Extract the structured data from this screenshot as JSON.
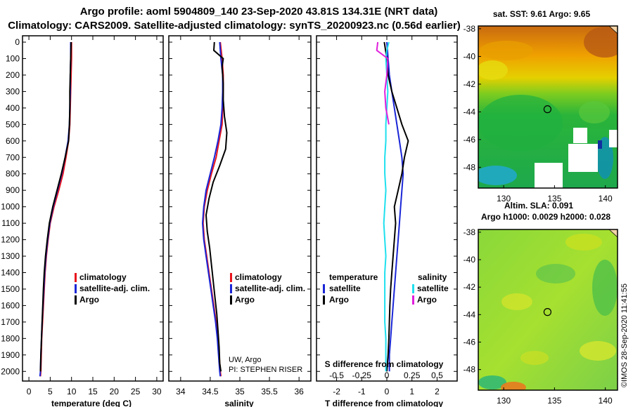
{
  "header": {
    "line1": "Argo profile: aoml 5904809_140 23-Sep-2020 43.81S 134.31E (NRT data)",
    "line2": "Climatology: CARS2009. Satellite-adjusted climatology: synTS_20200923.nc (0.56d earlier)"
  },
  "colors": {
    "climatology": "#e8141c",
    "satellite_adj": "#1a26d6",
    "argo": "#000000",
    "salinity_sat": "#1fe0ee",
    "salinity_argo": "#e01fdc"
  },
  "depth_axis": {
    "ticks": [
      "0",
      "100",
      "200",
      "300",
      "400",
      "500",
      "600",
      "700",
      "800",
      "900",
      "1000",
      "1100",
      "1200",
      "1300",
      "1400",
      "1500",
      "1600",
      "1700",
      "1800",
      "1900",
      "2000"
    ]
  },
  "chart_data": [
    {
      "type": "line",
      "name": "temperature-profile",
      "xlabel": "temperature (deg C)",
      "ylabel": "",
      "xlim": [
        -1.5,
        31.5
      ],
      "ylim": [
        2050,
        -30
      ],
      "x_ticks": [
        "0",
        "5",
        "10",
        "15",
        "20",
        "25",
        "30"
      ],
      "x_tick_values": [
        0,
        5,
        10,
        15,
        20,
        25,
        30
      ],
      "legend": [
        "climatology",
        "satellite-adj. clim.",
        "Argo"
      ],
      "series": [
        {
          "name": "climatology",
          "color_key": "climatology",
          "points": [
            [
              10.0,
              0
            ],
            [
              10.0,
              100
            ],
            [
              9.9,
              200
            ],
            [
              9.8,
              300
            ],
            [
              9.7,
              400
            ],
            [
              9.6,
              500
            ],
            [
              9.3,
              600
            ],
            [
              8.7,
              700
            ],
            [
              8.0,
              800
            ],
            [
              7.0,
              900
            ],
            [
              5.9,
              1000
            ],
            [
              5.0,
              1100
            ],
            [
              4.5,
              1200
            ],
            [
              4.1,
              1300
            ],
            [
              3.8,
              1400
            ],
            [
              3.6,
              1500
            ],
            [
              3.4,
              1600
            ],
            [
              3.2,
              1700
            ],
            [
              3.0,
              1800
            ],
            [
              2.9,
              1900
            ],
            [
              2.8,
              2000
            ],
            [
              2.7,
              2030
            ]
          ]
        },
        {
          "name": "satellite-adj. clim.",
          "color_key": "satellite_adj",
          "points": [
            [
              9.8,
              0
            ],
            [
              9.8,
              100
            ],
            [
              9.7,
              200
            ],
            [
              9.7,
              300
            ],
            [
              9.6,
              400
            ],
            [
              9.5,
              500
            ],
            [
              9.2,
              600
            ],
            [
              8.5,
              700
            ],
            [
              7.7,
              800
            ],
            [
              6.7,
              900
            ],
            [
              5.7,
              1000
            ],
            [
              4.9,
              1100
            ],
            [
              4.4,
              1200
            ],
            [
              4.0,
              1300
            ],
            [
              3.7,
              1400
            ],
            [
              3.5,
              1500
            ],
            [
              3.3,
              1600
            ],
            [
              3.1,
              1700
            ],
            [
              2.95,
              1800
            ],
            [
              2.8,
              1900
            ],
            [
              2.7,
              2000
            ],
            [
              2.6,
              2030
            ]
          ]
        },
        {
          "name": "Argo",
          "color_key": "argo",
          "points": [
            [
              9.9,
              0
            ],
            [
              9.8,
              100
            ],
            [
              9.7,
              200
            ],
            [
              9.6,
              300
            ],
            [
              9.6,
              400
            ],
            [
              9.5,
              500
            ],
            [
              9.3,
              600
            ],
            [
              8.5,
              700
            ],
            [
              7.6,
              800
            ],
            [
              6.6,
              900
            ],
            [
              5.6,
              1000
            ],
            [
              4.8,
              1100
            ],
            [
              4.3,
              1200
            ],
            [
              3.9,
              1300
            ],
            [
              3.6,
              1400
            ],
            [
              3.4,
              1500
            ],
            [
              3.25,
              1600
            ],
            [
              3.1,
              1700
            ],
            [
              2.95,
              1800
            ],
            [
              2.8,
              1900
            ],
            [
              2.7,
              2000
            ]
          ]
        }
      ]
    },
    {
      "type": "line",
      "name": "salinity-profile",
      "xlabel": "salinity",
      "ylabel": "",
      "xlim": [
        33.8,
        36.2
      ],
      "ylim": [
        2050,
        -30
      ],
      "x_ticks": [
        "34",
        "34.5",
        "35",
        "35.5",
        "36"
      ],
      "x_tick_values": [
        34,
        34.5,
        35,
        35.5,
        36
      ],
      "legend": [
        "climatology",
        "satellite-adj. clim.",
        "Argo"
      ],
      "annotation": [
        "UW, Argo",
        "PI: STEPHEN RISER"
      ],
      "series": [
        {
          "name": "climatology",
          "color_key": "climatology",
          "points": [
            [
              34.67,
              0
            ],
            [
              34.7,
              100
            ],
            [
              34.72,
              200
            ],
            [
              34.72,
              300
            ],
            [
              34.71,
              400
            ],
            [
              34.7,
              500
            ],
            [
              34.65,
              600
            ],
            [
              34.6,
              700
            ],
            [
              34.52,
              800
            ],
            [
              34.45,
              900
            ],
            [
              34.4,
              1000
            ],
            [
              34.38,
              1100
            ],
            [
              34.4,
              1200
            ],
            [
              34.44,
              1300
            ],
            [
              34.48,
              1400
            ],
            [
              34.52,
              1500
            ],
            [
              34.56,
              1600
            ],
            [
              34.6,
              1700
            ],
            [
              34.63,
              1800
            ],
            [
              34.65,
              1900
            ],
            [
              34.67,
              2000
            ],
            [
              34.68,
              2030
            ]
          ]
        },
        {
          "name": "satellite-adj. clim.",
          "color_key": "satellite_adj",
          "points": [
            [
              34.66,
              0
            ],
            [
              34.68,
              100
            ],
            [
              34.71,
              200
            ],
            [
              34.71,
              300
            ],
            [
              34.7,
              400
            ],
            [
              34.68,
              500
            ],
            [
              34.63,
              600
            ],
            [
              34.57,
              700
            ],
            [
              34.5,
              800
            ],
            [
              34.43,
              900
            ],
            [
              34.39,
              1000
            ],
            [
              34.37,
              1100
            ],
            [
              34.39,
              1200
            ],
            [
              34.43,
              1300
            ],
            [
              34.47,
              1400
            ],
            [
              34.51,
              1500
            ],
            [
              34.55,
              1600
            ],
            [
              34.59,
              1700
            ],
            [
              34.62,
              1800
            ],
            [
              34.64,
              1900
            ],
            [
              34.66,
              2000
            ],
            [
              34.67,
              2030
            ]
          ]
        },
        {
          "name": "Argo",
          "color_key": "argo",
          "points": [
            [
              34.57,
              0
            ],
            [
              34.56,
              50
            ],
            [
              34.72,
              100
            ],
            [
              34.7,
              150
            ],
            [
              34.72,
              250
            ],
            [
              34.72,
              350
            ],
            [
              34.74,
              450
            ],
            [
              34.78,
              550
            ],
            [
              34.76,
              650
            ],
            [
              34.66,
              750
            ],
            [
              34.55,
              850
            ],
            [
              34.48,
              950
            ],
            [
              34.43,
              1050
            ],
            [
              34.45,
              1150
            ],
            [
              34.49,
              1250
            ],
            [
              34.52,
              1350
            ],
            [
              34.55,
              1450
            ],
            [
              34.58,
              1550
            ],
            [
              34.61,
              1650
            ],
            [
              34.63,
              1750
            ],
            [
              34.65,
              1850
            ],
            [
              34.66,
              1950
            ],
            [
              34.68,
              2000
            ]
          ]
        }
      ]
    },
    {
      "type": "line",
      "name": "difference-from-climatology",
      "xlabel": "T difference from climatology",
      "xlabel_top": "S difference from climatology",
      "xlim": [
        -2.8,
        2.8
      ],
      "ylim": [
        2050,
        -30
      ],
      "x_ticks": [
        "-2",
        "-1",
        "0",
        "1",
        "2"
      ],
      "x_tick_values": [
        -2,
        -1,
        0,
        1,
        2
      ],
      "s_ticks": [
        "-0.5",
        "-0.25",
        "0",
        "0.25",
        "0.5"
      ],
      "s_tick_values": [
        -0.5,
        -0.25,
        0,
        0.25,
        0.5
      ],
      "legend": {
        "temperature_header": "temperature",
        "salinity_header": "salinity",
        "temperature": [
          "satellite",
          "Argo"
        ],
        "salinity": [
          "satellite",
          "Argo"
        ]
      },
      "series": [
        {
          "name": "temperature satellite",
          "color_key": "satellite_adj",
          "points": [
            [
              0.0,
              0
            ],
            [
              0.05,
              100
            ],
            [
              0.1,
              200
            ],
            [
              0.2,
              300
            ],
            [
              0.3,
              400
            ],
            [
              0.4,
              500
            ],
            [
              0.5,
              600
            ],
            [
              0.6,
              700
            ],
            [
              0.65,
              800
            ],
            [
              0.6,
              900
            ],
            [
              0.55,
              1000
            ],
            [
              0.5,
              1100
            ],
            [
              0.45,
              1200
            ],
            [
              0.4,
              1300
            ],
            [
              0.35,
              1400
            ],
            [
              0.3,
              1500
            ],
            [
              0.25,
              1600
            ],
            [
              0.2,
              1700
            ],
            [
              0.15,
              1800
            ],
            [
              0.1,
              1900
            ],
            [
              0.1,
              2000
            ]
          ]
        },
        {
          "name": "temperature Argo",
          "color_key": "argo",
          "points": [
            [
              -0.1,
              0
            ],
            [
              0.0,
              100
            ],
            [
              0.05,
              200
            ],
            [
              0.2,
              300
            ],
            [
              0.4,
              400
            ],
            [
              0.6,
              500
            ],
            [
              0.85,
              600
            ],
            [
              0.7,
              700
            ],
            [
              0.6,
              800
            ],
            [
              0.45,
              900
            ],
            [
              0.3,
              1000
            ],
            [
              0.35,
              1100
            ],
            [
              0.3,
              1200
            ],
            [
              0.25,
              1300
            ],
            [
              0.2,
              1400
            ],
            [
              0.15,
              1500
            ],
            [
              0.12,
              1600
            ],
            [
              0.1,
              1700
            ],
            [
              0.08,
              1800
            ],
            [
              0.05,
              1900
            ],
            [
              0.0,
              2000
            ]
          ]
        },
        {
          "name": "salinity satellite",
          "color_key": "salinity_sat",
          "points": [
            [
              0.02,
              0
            ],
            [
              0.0,
              50
            ],
            [
              -0.01,
              100
            ],
            [
              0.0,
              200
            ],
            [
              0.01,
              300
            ],
            [
              0.0,
              400
            ],
            [
              -0.01,
              500
            ],
            [
              -0.01,
              600
            ],
            [
              -0.02,
              700
            ],
            [
              -0.02,
              800
            ],
            [
              -0.01,
              900
            ],
            [
              -0.02,
              1000
            ],
            [
              -0.03,
              1100
            ],
            [
              -0.02,
              1200
            ],
            [
              -0.01,
              1300
            ],
            [
              -0.02,
              1400
            ],
            [
              -0.02,
              1500
            ],
            [
              -0.02,
              1600
            ],
            [
              -0.02,
              1700
            ],
            [
              -0.01,
              1800
            ],
            [
              -0.01,
              1900
            ],
            [
              -0.01,
              2000
            ]
          ]
        },
        {
          "name": "salinity Argo",
          "color_key": "salinity_argo",
          "points": [
            [
              -0.09,
              0
            ],
            [
              -0.1,
              50
            ],
            [
              0.01,
              100
            ],
            [
              0.0,
              200
            ],
            [
              -0.02,
              300
            ],
            [
              -0.01,
              400
            ],
            [
              0.02,
              500
            ]
          ]
        }
      ]
    },
    {
      "type": "heatmap",
      "name": "sst-map",
      "title": "sat. SST: 9.61 Argo: 9.65",
      "x_ticks": [
        "130",
        "135",
        "140"
      ],
      "x_tick_values": [
        130,
        135,
        140
      ],
      "y_ticks": [
        "-38",
        "-40",
        "-42",
        "-44",
        "-46",
        "-48"
      ],
      "y_tick_values": [
        -38,
        -40,
        -42,
        -44,
        -46,
        -48
      ],
      "xlim": [
        127.5,
        141.2
      ],
      "ylim": [
        -49.5,
        -37.8
      ],
      "marker": [
        134.31,
        -43.81
      ]
    },
    {
      "type": "heatmap",
      "name": "sla-map",
      "title_line1": "Altim. SLA: 0.091",
      "title_line2": "Argo h1000: 0.0029 h2000: 0.028",
      "x_ticks": [
        "130",
        "135",
        "140"
      ],
      "x_tick_values": [
        130,
        135,
        140
      ],
      "y_ticks": [
        "-38",
        "-40",
        "-42",
        "-44",
        "-46",
        "-48"
      ],
      "y_tick_values": [
        -38,
        -40,
        -42,
        -44,
        -46,
        -48
      ],
      "xlim": [
        127.5,
        141.2
      ],
      "ylim": [
        -49.5,
        -37.8
      ],
      "marker": [
        134.31,
        -43.81
      ]
    }
  ],
  "footer": {
    "watermark": "©IMOS 28-Sep-2020 11:41:55"
  }
}
